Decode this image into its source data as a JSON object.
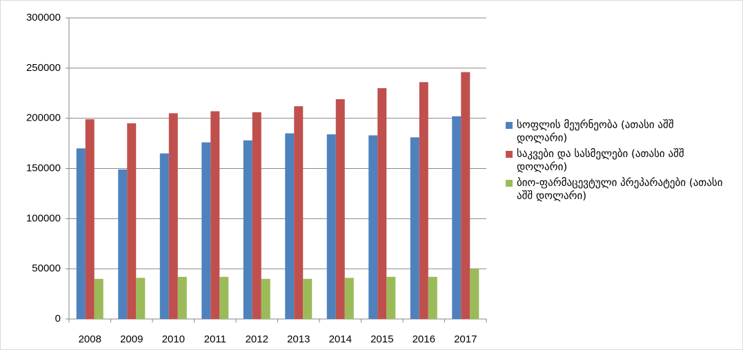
{
  "chart_data": {
    "type": "bar",
    "categories": [
      "2008",
      "2009",
      "2010",
      "2011",
      "2012",
      "2013",
      "2014",
      "2015",
      "2016",
      "2017"
    ],
    "series": [
      {
        "name": "სოფლის მეურნეობა (ათასი აშშ დოლარი)",
        "color": "#4f81bd",
        "values": [
          170000,
          149000,
          165000,
          176000,
          178000,
          185000,
          184000,
          183000,
          181000,
          202000
        ]
      },
      {
        "name": "საკვები და სასმელები (ათასი აშშ დოლარი)",
        "color": "#c0504d",
        "values": [
          199000,
          195000,
          205000,
          207000,
          206000,
          212000,
          219000,
          230000,
          236000,
          246000
        ]
      },
      {
        "name": "ბიო-ფარმაცევტული პრეპარატები (ათასი აშშ დოლარი)",
        "color": "#9bbb59",
        "values": [
          40000,
          41000,
          42000,
          42000,
          40000,
          40000,
          41000,
          42000,
          42000,
          50000
        ]
      }
    ],
    "ylim": [
      0,
      300000
    ],
    "yticks": [
      0,
      50000,
      100000,
      150000,
      200000,
      250000,
      300000
    ],
    "grid": true,
    "legend": "right"
  }
}
